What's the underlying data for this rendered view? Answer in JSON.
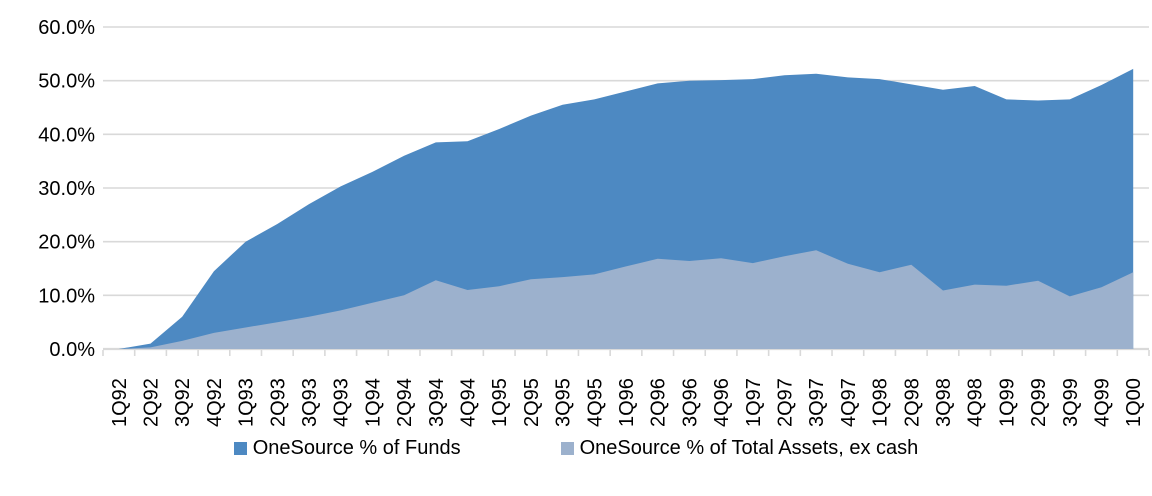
{
  "chart_data": {
    "type": "area",
    "stacked": false,
    "title": "",
    "xlabel": "",
    "ylabel": "",
    "ylim": [
      0,
      60
    ],
    "grid": true,
    "legend_position": "bottom",
    "background_color": "#ffffff",
    "gridline_color": "#d9d9d9",
    "text_color": "#000000",
    "y_tick_labels": [
      "0.0%",
      "10.0%",
      "20.0%",
      "30.0%",
      "40.0%",
      "50.0%",
      "60.0%"
    ],
    "y_tick_values": [
      0,
      10,
      20,
      30,
      40,
      50,
      60
    ],
    "categories": [
      "1Q92",
      "2Q92",
      "3Q92",
      "4Q92",
      "1Q93",
      "2Q93",
      "3Q93",
      "4Q93",
      "1Q94",
      "2Q94",
      "3Q94",
      "4Q94",
      "1Q95",
      "2Q95",
      "3Q95",
      "4Q95",
      "1Q96",
      "2Q96",
      "3Q96",
      "4Q96",
      "1Q97",
      "2Q97",
      "3Q97",
      "4Q97",
      "1Q98",
      "2Q98",
      "3Q98",
      "4Q98",
      "1Q99",
      "2Q99",
      "3Q99",
      "4Q99",
      "1Q00"
    ],
    "series": [
      {
        "name": "OneSource % of Funds",
        "color": "#4d89c2",
        "values": [
          0.0,
          1.0,
          6.0,
          14.5,
          20.0,
          23.3,
          27.0,
          30.3,
          33.0,
          36.0,
          38.5,
          38.7,
          41.0,
          43.5,
          45.5,
          46.5,
          48.0,
          49.5,
          50.0,
          50.1,
          50.3,
          51.0,
          51.3,
          50.6,
          50.3,
          49.3,
          48.3,
          49.0,
          46.5,
          46.3,
          46.5,
          49.2,
          52.2
        ]
      },
      {
        "name": "OneSource % of Total Assets, ex cash",
        "color": "#9cb1cd",
        "values": [
          0.0,
          0.3,
          1.5,
          3.0,
          4.0,
          5.0,
          6.0,
          7.2,
          8.6,
          10.0,
          12.8,
          11.0,
          11.7,
          13.0,
          13.4,
          13.9,
          15.4,
          16.8,
          16.4,
          16.9,
          16.0,
          17.3,
          18.4,
          15.9,
          14.3,
          15.7,
          10.9,
          12.0,
          11.8,
          12.7,
          9.8,
          11.5,
          14.3
        ]
      }
    ]
  }
}
